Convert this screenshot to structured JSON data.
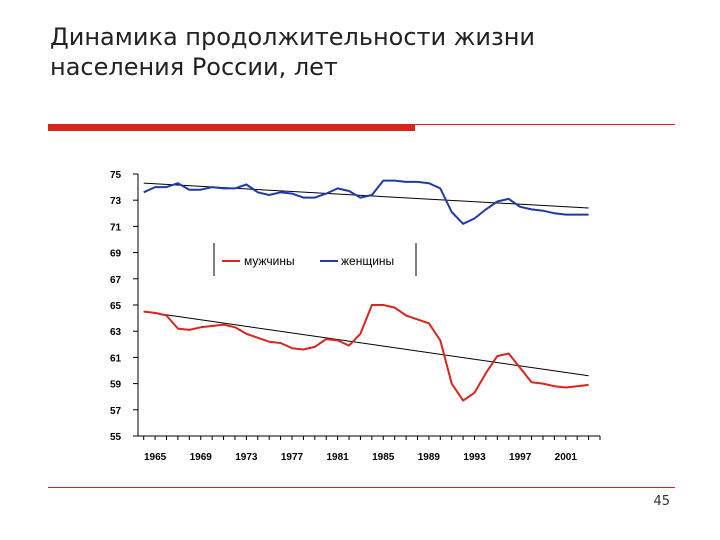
{
  "slide": {
    "title_line1": "Динамика продолжительности жизни",
    "title_line2": "населения России, лет",
    "page_number": "45"
  },
  "chart_data": {
    "type": "line",
    "title": "",
    "xlabel": "",
    "ylabel": "",
    "ylim": [
      55,
      75
    ],
    "xlim": [
      1963.5,
      2004
    ],
    "y_ticks": [
      55,
      57,
      59,
      61,
      63,
      65,
      67,
      69,
      71,
      73,
      75
    ],
    "x_tick_labels": [
      1965,
      1969,
      1973,
      1977,
      1981,
      1985,
      1989,
      1993,
      1997,
      2001
    ],
    "legend_position": "top-center",
    "grid": false,
    "series": [
      {
        "name": "мужчины",
        "color": "#d9261c",
        "x": [
          1964,
          1965,
          1966,
          1967,
          1968,
          1969,
          1970,
          1971,
          1972,
          1973,
          1974,
          1975,
          1976,
          1977,
          1978,
          1979,
          1980,
          1981,
          1982,
          1983,
          1984,
          1985,
          1986,
          1987,
          1988,
          1989,
          1990,
          1991,
          1992,
          1993,
          1994,
          1995,
          1996,
          1997,
          1998,
          1999,
          2000,
          2001,
          2002,
          2003
        ],
        "y": [
          64.5,
          64.4,
          64.2,
          63.2,
          63.1,
          63.3,
          63.4,
          63.5,
          63.3,
          62.8,
          62.5,
          62.2,
          62.1,
          61.7,
          61.6,
          61.8,
          62.4,
          62.3,
          61.9,
          62.8,
          65.0,
          65.0,
          64.8,
          64.2,
          63.9,
          63.6,
          62.3,
          59.0,
          57.7,
          58.3,
          59.8,
          61.1,
          61.3,
          60.2,
          59.1,
          59.0,
          58.8,
          58.7,
          58.8,
          58.9
        ]
      },
      {
        "name": "женщины",
        "color": "#1f3aa8",
        "x": [
          1964,
          1965,
          1966,
          1967,
          1968,
          1969,
          1970,
          1971,
          1972,
          1973,
          1974,
          1975,
          1976,
          1977,
          1978,
          1979,
          1980,
          1981,
          1982,
          1983,
          1984,
          1985,
          1986,
          1987,
          1988,
          1989,
          1990,
          1991,
          1992,
          1993,
          1994,
          1995,
          1996,
          1997,
          1998,
          1999,
          2000,
          2001,
          2002,
          2003
        ],
        "y": [
          73.6,
          74.0,
          74.0,
          74.3,
          73.8,
          73.8,
          74.0,
          73.9,
          73.9,
          74.2,
          73.6,
          73.4,
          73.6,
          73.5,
          73.2,
          73.2,
          73.5,
          73.9,
          73.7,
          73.2,
          73.4,
          74.5,
          74.5,
          74.4,
          74.4,
          74.3,
          73.9,
          72.1,
          71.2,
          71.6,
          72.3,
          72.9,
          73.1,
          72.5,
          72.3,
          72.2,
          72.0,
          71.9,
          71.9,
          71.9
        ]
      }
    ],
    "trendlines": [
      {
        "series": "мужчины",
        "color": "#000000",
        "x": [
          1964,
          2003
        ],
        "y": [
          64.5,
          59.6
        ]
      },
      {
        "series": "женщины",
        "color": "#000000",
        "x": [
          1964,
          2003
        ],
        "y": [
          74.3,
          72.4
        ]
      }
    ]
  }
}
